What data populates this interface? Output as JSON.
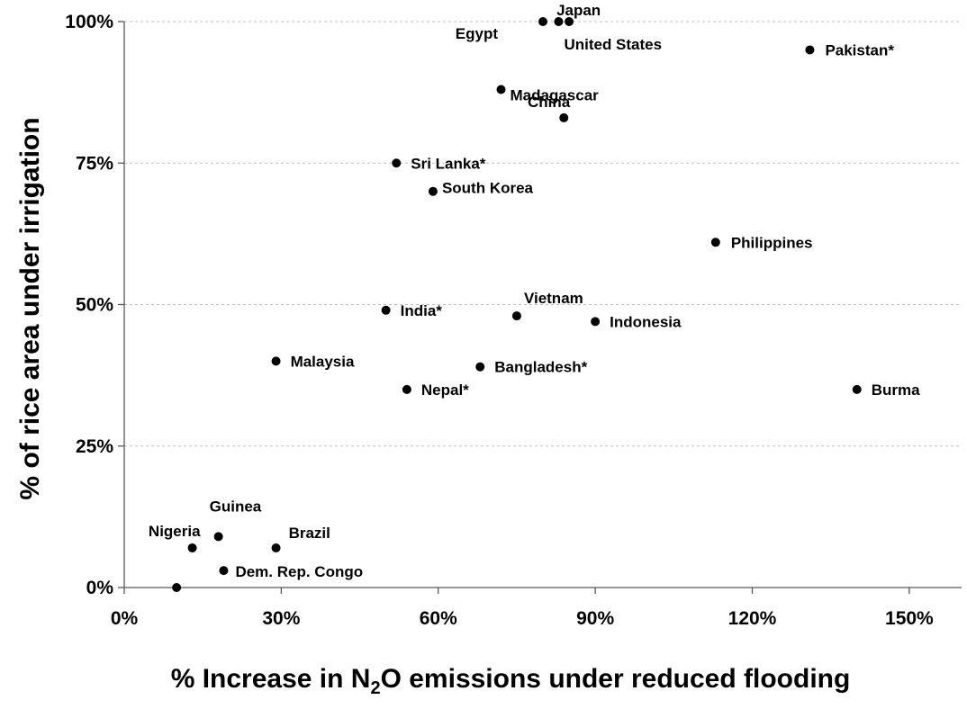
{
  "chart_data": {
    "type": "scatter",
    "title": "",
    "xlabel_prefix": "% Increase in N",
    "xlabel_subscript": "2",
    "xlabel_suffix": "O emissions under reduced flooding",
    "ylabel": "% of rice area under irrigation",
    "xlim": [
      0,
      160
    ],
    "ylim": [
      0,
      100
    ],
    "x_ticks": [
      0,
      30,
      60,
      90,
      120,
      150
    ],
    "x_tick_labels": [
      "0%",
      "30%",
      "60%",
      "90%",
      "120%",
      "150%"
    ],
    "y_ticks": [
      0,
      25,
      50,
      75,
      100
    ],
    "y_tick_labels": [
      "0%",
      "25%",
      "50%",
      "75%",
      "100%"
    ],
    "grid": "horizontal dashed",
    "marker_color": "#000000",
    "grid_color": "#bfbfbf",
    "points": [
      {
        "label": "Japan",
        "x": 85,
        "y": 100
      },
      {
        "label": "Egypt",
        "x": 80,
        "y": 100
      },
      {
        "label": "United States",
        "x": 83,
        "y": 100
      },
      {
        "label": "Pakistan*",
        "x": 131,
        "y": 95
      },
      {
        "label": "Madagascar",
        "x": 72,
        "y": 88
      },
      {
        "label": "China",
        "x": 84,
        "y": 83
      },
      {
        "label": "Sri Lanka*",
        "x": 52,
        "y": 75
      },
      {
        "label": "South Korea",
        "x": 59,
        "y": 70
      },
      {
        "label": "Philippines",
        "x": 113,
        "y": 61
      },
      {
        "label": "India*",
        "x": 50,
        "y": 49
      },
      {
        "label": "Vietnam",
        "x": 75,
        "y": 48
      },
      {
        "label": "Indonesia",
        "x": 90,
        "y": 47
      },
      {
        "label": "Malaysia",
        "x": 29,
        "y": 40
      },
      {
        "label": "Bangladesh*",
        "x": 68,
        "y": 39
      },
      {
        "label": "Nepal*",
        "x": 54,
        "y": 35
      },
      {
        "label": "Burma",
        "x": 140,
        "y": 35
      },
      {
        "label": "Guinea",
        "x": 18,
        "y": 9
      },
      {
        "label": "Nigeria",
        "x": 13,
        "y": 7
      },
      {
        "label": "Brazil",
        "x": 29,
        "y": 7
      },
      {
        "label": "Dem. Rep. Congo",
        "x": 19,
        "y": 3
      },
      {
        "label": "",
        "x": 10,
        "y": 0
      }
    ]
  }
}
